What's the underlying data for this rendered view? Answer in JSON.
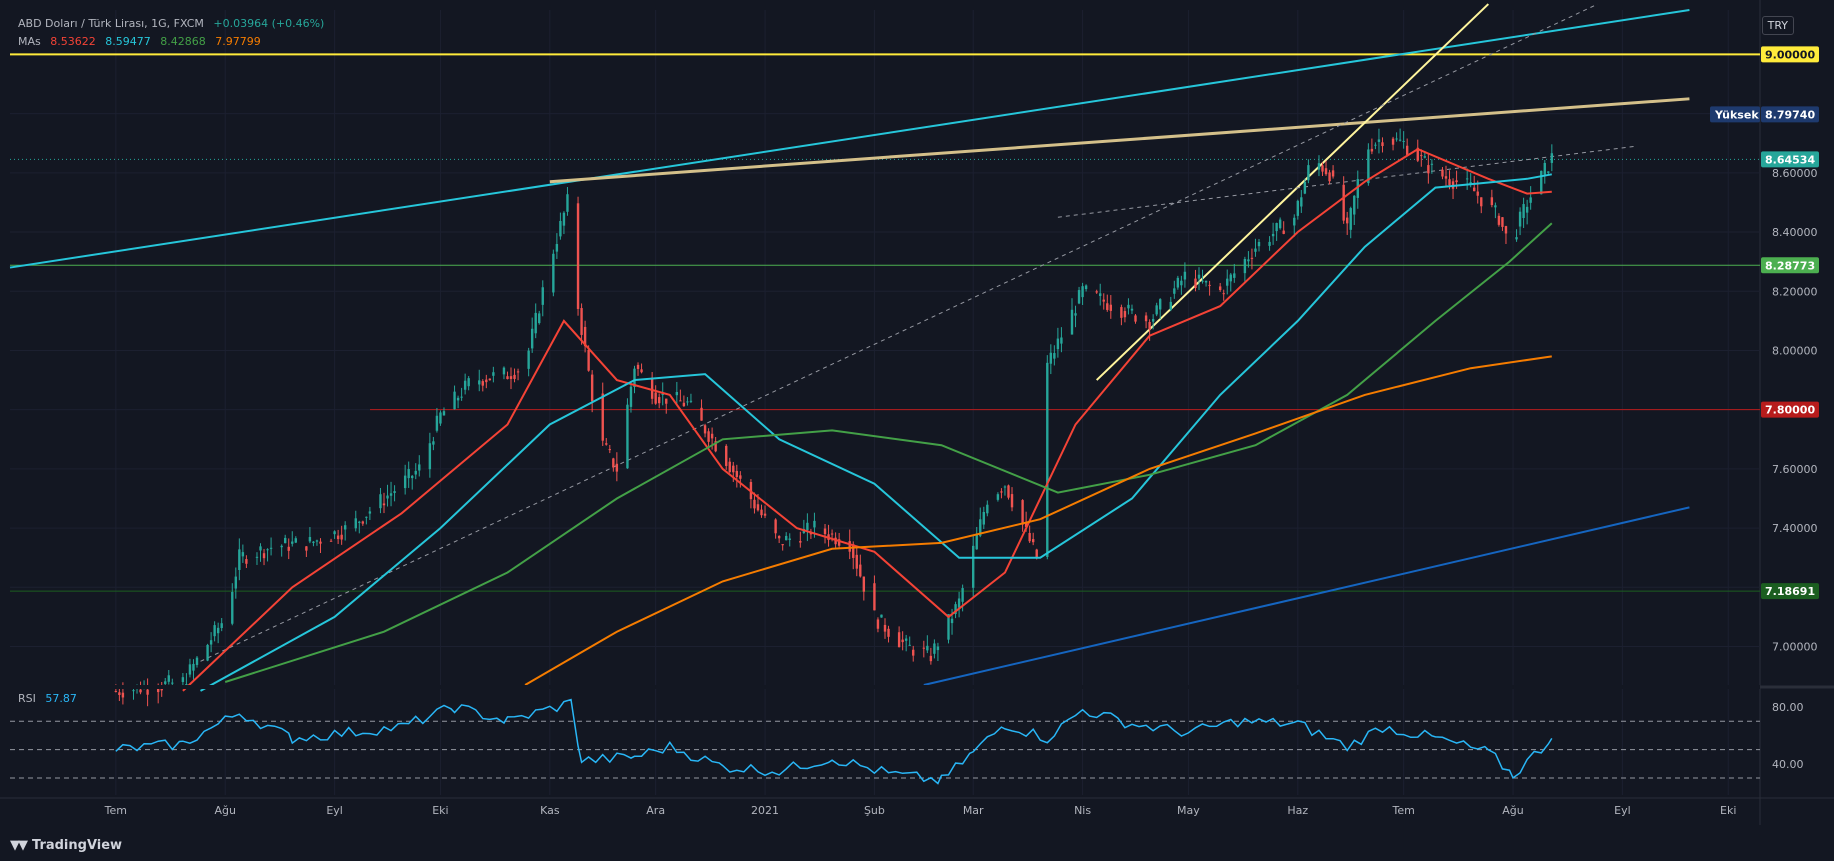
{
  "header": {
    "symbol_title": "ABD Doları / Türk Lirası, 1G, FXCM",
    "change": "+0.03964 (+0.46%)",
    "ma_label": "MAs",
    "ma_values": [
      "8.53622",
      "8.59477",
      "8.42868",
      "7.97799"
    ],
    "currency": "TRY"
  },
  "colors": {
    "background": "#131722",
    "up": "#26a69a",
    "down": "#ef5350",
    "ma20": "#f44336",
    "ma50": "#26c6da",
    "ma100": "#43a047",
    "ma200": "#f57c00",
    "yellow": "#ffeb3b",
    "rsi": "#29b6f6"
  },
  "price_axis": {
    "ticks": [
      "9.00000",
      "8.80000",
      "8.60000",
      "8.40000",
      "8.20000",
      "8.00000",
      "7.80000",
      "7.60000",
      "7.40000",
      "7.20000",
      "7.00000"
    ],
    "tick_values": [
      9.0,
      8.8,
      8.6,
      8.4,
      8.2,
      8.0,
      7.8,
      7.6,
      7.4,
      7.2,
      7.0
    ],
    "range": [
      6.87,
      9.15
    ]
  },
  "price_labels": [
    {
      "text": "9.00000",
      "value": 9.0,
      "bg": "#ffeb3b",
      "fg": "#131722"
    },
    {
      "text": "8.79740",
      "value": 8.7974,
      "bg": "#1e3a6e",
      "fg": "#ffffff",
      "tag": "Yüksek"
    },
    {
      "text": "8.64534",
      "value": 8.64534,
      "bg": "#26a69a",
      "fg": "#ffffff"
    },
    {
      "text": "8.28773",
      "value": 8.28773,
      "bg": "#4caf50",
      "fg": "#ffffff"
    },
    {
      "text": "7.80000",
      "value": 7.8,
      "bg": "#b71c1c",
      "fg": "#ffffff"
    },
    {
      "text": "7.18691",
      "value": 7.18691,
      "bg": "#1b5e20",
      "fg": "#ffffff"
    }
  ],
  "time_axis": [
    "Tem",
    "Ağu",
    "Eyl",
    "Eki",
    "Kas",
    "Ara",
    "2021",
    "Şub",
    "Mar",
    "Nis",
    "May",
    "Haz",
    "Tem",
    "Ağu",
    "Eyl",
    "Eki"
  ],
  "rsi": {
    "label": "RSI",
    "value": "57.87",
    "ticks": [
      "80.00",
      "40.00"
    ],
    "tick_values": [
      80,
      40
    ],
    "bands": [
      70,
      50,
      30
    ],
    "range": [
      18,
      92
    ]
  },
  "brand": "TradingView",
  "chart_data": {
    "type": "candlestick",
    "title": "ABD Doları / Türk Lirası, 1G, FXCM",
    "x_range": [
      "2020-06",
      "2021-10"
    ],
    "series": [
      {
        "name": "Price",
        "points": [
          [
            "2020-07",
            6.85
          ],
          [
            "2020-07-20",
            6.88
          ],
          [
            "2020-08-01",
            7.1
          ],
          [
            "2020-08-05",
            7.3
          ],
          [
            "2020-08-15",
            7.34
          ],
          [
            "2020-08-25",
            7.35
          ],
          [
            "2020-09-05",
            7.4
          ],
          [
            "2020-09-15",
            7.5
          ],
          [
            "2020-09-25",
            7.6
          ],
          [
            "2020-10-01",
            7.78
          ],
          [
            "2020-10-10",
            7.9
          ],
          [
            "2020-10-20",
            7.92
          ],
          [
            "2020-10-25",
            7.95
          ],
          [
            "2020-11-01",
            8.3
          ],
          [
            "2020-11-06",
            8.5
          ],
          [
            "2020-11-09",
            8.15
          ],
          [
            "2020-11-15",
            7.7
          ],
          [
            "2020-11-20",
            7.6
          ],
          [
            "2020-11-25",
            7.95
          ],
          [
            "2020-12-01",
            7.85
          ],
          [
            "2020-12-10",
            7.82
          ],
          [
            "2020-12-20",
            7.65
          ],
          [
            "2020-12-28",
            7.5
          ],
          [
            "2021-01-05",
            7.35
          ],
          [
            "2021-01-15",
            7.4
          ],
          [
            "2021-01-25",
            7.35
          ],
          [
            "2021-02-01",
            7.1
          ],
          [
            "2021-02-10",
            7.0
          ],
          [
            "2021-02-17",
            6.97
          ],
          [
            "2021-02-25",
            7.15
          ],
          [
            "2021-03-05",
            7.5
          ],
          [
            "2021-03-10",
            7.55
          ],
          [
            "2021-03-19",
            7.3
          ],
          [
            "2021-03-22",
            7.95
          ],
          [
            "2021-04-01",
            8.2
          ],
          [
            "2021-04-10",
            8.15
          ],
          [
            "2021-04-20",
            8.1
          ],
          [
            "2021-04-30",
            8.25
          ],
          [
            "2021-05-10",
            8.2
          ],
          [
            "2021-05-20",
            8.35
          ],
          [
            "2021-05-31",
            8.45
          ],
          [
            "2021-06-05",
            8.65
          ],
          [
            "2021-06-10",
            8.6
          ],
          [
            "2021-06-15",
            8.4
          ],
          [
            "2021-06-20",
            8.68
          ],
          [
            "2021-06-25",
            8.72
          ],
          [
            "2021-07-01",
            8.7
          ],
          [
            "2021-07-10",
            8.6
          ],
          [
            "2021-07-20",
            8.55
          ],
          [
            "2021-07-28",
            8.45
          ],
          [
            "2021-07-31",
            8.35
          ],
          [
            "2021-08-05",
            8.5
          ],
          [
            "2021-08-12",
            8.65
          ]
        ]
      },
      {
        "name": "MA 8.53622",
        "points": [
          [
            "2020-07-20",
            6.85
          ],
          [
            "2020-08-20",
            7.2
          ],
          [
            "2020-09-20",
            7.45
          ],
          [
            "2020-10-20",
            7.75
          ],
          [
            "2020-11-05",
            8.1
          ],
          [
            "2020-11-20",
            7.9
          ],
          [
            "2020-12-05",
            7.85
          ],
          [
            "2020-12-20",
            7.6
          ],
          [
            "2021-01-10",
            7.4
          ],
          [
            "2021-02-01",
            7.32
          ],
          [
            "2021-02-22",
            7.1
          ],
          [
            "2021-03-10",
            7.25
          ],
          [
            "2021-03-30",
            7.75
          ],
          [
            "2021-04-20",
            8.05
          ],
          [
            "2021-05-10",
            8.15
          ],
          [
            "2021-06-01",
            8.4
          ],
          [
            "2021-06-20",
            8.57
          ],
          [
            "2021-07-05",
            8.68
          ],
          [
            "2021-07-25",
            8.58
          ],
          [
            "2021-08-05",
            8.53
          ],
          [
            "2021-08-12",
            8.536
          ]
        ]
      },
      {
        "name": "MA 8.59477",
        "points": [
          [
            "2020-07-25",
            6.85
          ],
          [
            "2020-09-01",
            7.1
          ],
          [
            "2020-10-01",
            7.4
          ],
          [
            "2020-11-01",
            7.75
          ],
          [
            "2020-11-25",
            7.9
          ],
          [
            "2020-12-15",
            7.92
          ],
          [
            "2021-01-05",
            7.7
          ],
          [
            "2021-02-01",
            7.55
          ],
          [
            "2021-02-25",
            7.3
          ],
          [
            "2021-03-20",
            7.3
          ],
          [
            "2021-04-15",
            7.5
          ],
          [
            "2021-05-10",
            7.85
          ],
          [
            "2021-06-01",
            8.1
          ],
          [
            "2021-06-20",
            8.35
          ],
          [
            "2021-07-10",
            8.55
          ],
          [
            "2021-08-05",
            8.58
          ],
          [
            "2021-08-12",
            8.595
          ]
        ]
      },
      {
        "name": "MA 8.42868",
        "points": [
          [
            "2020-08-01",
            6.88
          ],
          [
            "2020-09-15",
            7.05
          ],
          [
            "2020-10-20",
            7.25
          ],
          [
            "2020-11-20",
            7.5
          ],
          [
            "2020-12-20",
            7.7
          ],
          [
            "2021-01-20",
            7.73
          ],
          [
            "2021-02-20",
            7.68
          ],
          [
            "2021-03-25",
            7.52
          ],
          [
            "2021-04-20",
            7.58
          ],
          [
            "2021-05-20",
            7.68
          ],
          [
            "2021-06-15",
            7.85
          ],
          [
            "2021-07-10",
            8.1
          ],
          [
            "2021-07-31",
            8.3
          ],
          [
            "2021-08-12",
            8.43
          ]
        ]
      },
      {
        "name": "MA 7.97799",
        "points": [
          [
            "2020-10-25",
            6.87
          ],
          [
            "2020-11-20",
            7.05
          ],
          [
            "2020-12-20",
            7.22
          ],
          [
            "2021-01-20",
            7.33
          ],
          [
            "2021-02-20",
            7.35
          ],
          [
            "2021-03-20",
            7.43
          ],
          [
            "2021-04-20",
            7.6
          ],
          [
            "2021-05-20",
            7.72
          ],
          [
            "2021-06-20",
            7.85
          ],
          [
            "2021-07-20",
            7.94
          ],
          [
            "2021-08-12",
            7.98
          ]
        ]
      }
    ],
    "rsi_points": [
      [
        "2020-07-01",
        50
      ],
      [
        "2020-07-20",
        54
      ],
      [
        "2020-08-05",
        76
      ],
      [
        "2020-08-20",
        58
      ],
      [
        "2020-09-05",
        62
      ],
      [
        "2020-09-20",
        66
      ],
      [
        "2020-10-05",
        80
      ],
      [
        "2020-10-20",
        70
      ],
      [
        "2020-11-07",
        83
      ],
      [
        "2020-11-10",
        42
      ],
      [
        "2020-11-25",
        45
      ],
      [
        "2020-12-05",
        52
      ],
      [
        "2020-12-20",
        38
      ],
      [
        "2021-01-05",
        35
      ],
      [
        "2021-01-20",
        44
      ],
      [
        "2021-02-05",
        33
      ],
      [
        "2021-02-20",
        28
      ],
      [
        "2021-03-01",
        48
      ],
      [
        "2021-03-10",
        68
      ],
      [
        "2021-03-22",
        58
      ],
      [
        "2021-04-01",
        78
      ],
      [
        "2021-04-15",
        68
      ],
      [
        "2021-05-01",
        62
      ],
      [
        "2021-05-15",
        70
      ],
      [
        "2021-06-01",
        68
      ],
      [
        "2021-06-15",
        52
      ],
      [
        "2021-06-25",
        66
      ],
      [
        "2021-07-10",
        58
      ],
      [
        "2021-07-25",
        48
      ],
      [
        "2021-08-01",
        32
      ],
      [
        "2021-08-12",
        57.87
      ]
    ],
    "levels": [
      9.0,
      8.64534,
      8.28773,
      7.8,
      7.18691
    ],
    "high_label": "Yüksek",
    "high_value": 8.7974
  }
}
